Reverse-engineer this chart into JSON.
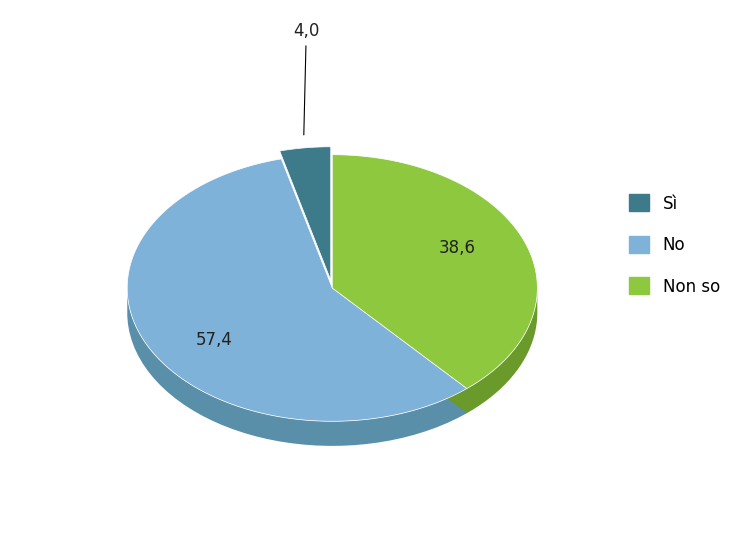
{
  "labels": [
    "Sì",
    "No",
    "Non so"
  ],
  "values": [
    4.0,
    57.4,
    38.6
  ],
  "colors": [
    "#3d7a8a",
    "#7fb2d8",
    "#8dc83f"
  ],
  "colors_dark": [
    "#2a5560",
    "#5a8faa",
    "#6a9a2a"
  ],
  "explode": [
    0.06,
    0.0,
    0.0
  ],
  "legend_labels": [
    "Sì",
    "No",
    "Non so"
  ],
  "pct_labels": [
    "4,0",
    "57,4",
    "38,6"
  ],
  "background_color": "#ffffff",
  "startangle": 90,
  "label_fontsize": 12,
  "legend_fontsize": 12
}
